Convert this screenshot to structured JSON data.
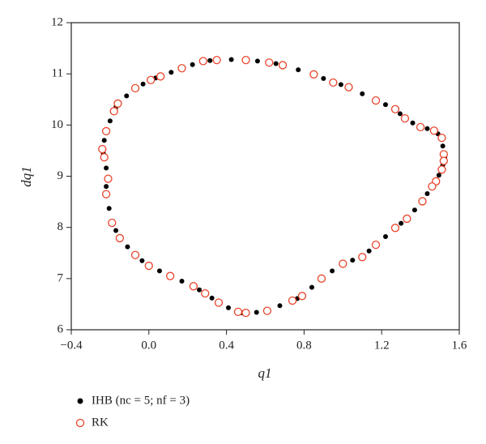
{
  "chart_data": {
    "type": "scatter",
    "x_label": "q1",
    "y_label": "dq1",
    "xlim": [
      -0.4,
      1.6
    ],
    "ylim": [
      6,
      12
    ],
    "xticks": [
      {
        "value": -0.4,
        "label": "−0.4"
      },
      {
        "value": 0,
        "label": "0.0"
      },
      0.4,
      0.8,
      1.2,
      1.6
    ],
    "yticks": [
      6,
      7,
      8,
      9,
      10,
      11,
      12
    ],
    "series": [
      {
        "name": "IHB (nc = 5; nf = 3)",
        "color": "#000000",
        "marker": "dot",
        "x": [
          0.28,
          0.315,
          0.35,
          0.425,
          0.5,
          0.56,
          0.62,
          0.655,
          0.69,
          0.77,
          0.85,
          0.9,
          0.95,
          0.99,
          1.03,
          1.1,
          1.17,
          1.22,
          1.27,
          1.295,
          1.32,
          1.36,
          1.4,
          1.435,
          1.47,
          1.49,
          1.51,
          1.515,
          1.52,
          1.525,
          1.52,
          1.515,
          1.51,
          1.495,
          1.48,
          1.47,
          1.46,
          1.435,
          1.41,
          1.37,
          1.33,
          1.3,
          1.27,
          1.22,
          1.17,
          1.135,
          1.1,
          1.05,
          1.0,
          0.945,
          0.89,
          0.84,
          0.79,
          0.765,
          0.74,
          0.675,
          0.61,
          0.555,
          0.5,
          0.48,
          0.46,
          0.41,
          0.36,
          0.325,
          0.29,
          0.26,
          0.23,
          0.17,
          0.11,
          0.055,
          0.0,
          -0.035,
          -0.07,
          -0.11,
          -0.15,
          -0.17,
          -0.19,
          -0.205,
          -0.22,
          -0.22,
          -0.21,
          -0.22,
          -0.23,
          -0.235,
          -0.24,
          -0.23,
          -0.22,
          -0.2,
          -0.18,
          -0.17,
          -0.16,
          -0.115,
          -0.07,
          -0.03,
          0.01,
          0.035,
          0.06,
          0.115,
          0.17,
          0.225
        ],
        "values": [
          11.25,
          11.26,
          11.27,
          11.28,
          11.27,
          11.25,
          11.22,
          11.2,
          11.17,
          11.08,
          10.99,
          10.91,
          10.83,
          10.79,
          10.74,
          10.61,
          10.48,
          10.4,
          10.31,
          10.22,
          10.13,
          10.04,
          9.96,
          9.93,
          9.89,
          9.83,
          9.75,
          9.59,
          9.43,
          9.37,
          9.3,
          9.22,
          9.13,
          9.02,
          8.9,
          8.85,
          8.8,
          8.66,
          8.51,
          8.34,
          8.17,
          8.08,
          7.99,
          7.82,
          7.66,
          7.54,
          7.42,
          7.36,
          7.29,
          7.15,
          7.0,
          6.83,
          6.66,
          6.61,
          6.57,
          6.47,
          6.37,
          6.34,
          6.33,
          6.33,
          6.35,
          6.43,
          6.53,
          6.62,
          6.71,
          6.78,
          6.85,
          6.95,
          7.05,
          7.15,
          7.25,
          7.35,
          7.46,
          7.62,
          7.79,
          7.94,
          8.09,
          8.37,
          8.65,
          8.8,
          8.95,
          9.16,
          9.37,
          9.45,
          9.53,
          9.7,
          9.88,
          10.08,
          10.27,
          10.35,
          10.42,
          10.57,
          10.72,
          10.8,
          10.88,
          10.92,
          10.95,
          11.03,
          11.11,
          11.18
        ]
      },
      {
        "name": "RK",
        "color": "#e8442a",
        "marker": "open-circle",
        "x": [
          0.28,
          0.35,
          0.5,
          0.62,
          0.69,
          0.85,
          0.95,
          1.03,
          1.17,
          1.27,
          1.32,
          1.4,
          1.47,
          1.51,
          1.52,
          1.52,
          1.51,
          1.48,
          1.46,
          1.41,
          1.33,
          1.27,
          1.17,
          1.1,
          1.0,
          0.89,
          0.79,
          0.74,
          0.61,
          0.5,
          0.46,
          0.36,
          0.29,
          0.23,
          0.11,
          0.0,
          -0.07,
          -0.15,
          -0.19,
          -0.22,
          -0.21,
          -0.23,
          -0.24,
          -0.22,
          -0.18,
          -0.16,
          -0.07,
          0.01,
          0.06,
          0.17
        ],
        "values": [
          11.25,
          11.27,
          11.27,
          11.22,
          11.17,
          10.99,
          10.83,
          10.74,
          10.48,
          10.31,
          10.13,
          9.96,
          9.89,
          9.75,
          9.43,
          9.3,
          9.13,
          8.9,
          8.8,
          8.51,
          8.17,
          7.99,
          7.66,
          7.42,
          7.29,
          7.0,
          6.66,
          6.57,
          6.37,
          6.33,
          6.35,
          6.53,
          6.71,
          6.85,
          7.05,
          7.25,
          7.46,
          7.79,
          8.09,
          8.65,
          8.95,
          9.37,
          9.53,
          9.88,
          10.27,
          10.42,
          10.72,
          10.88,
          10.95,
          11.11
        ]
      }
    ]
  }
}
